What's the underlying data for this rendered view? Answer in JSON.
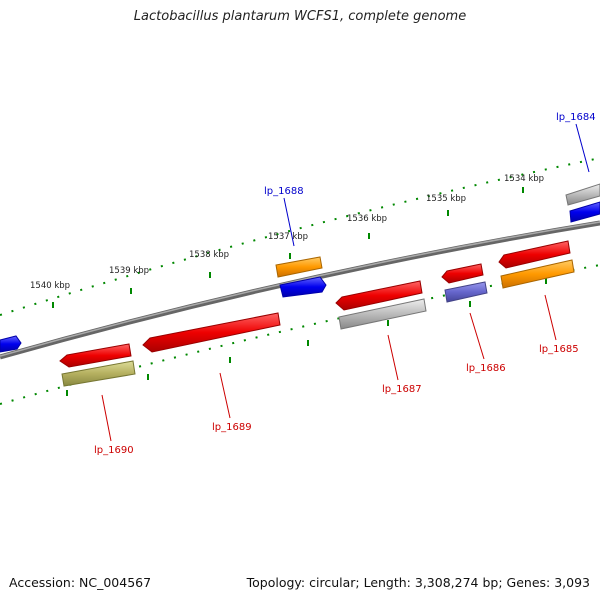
{
  "title": "Lactobacillus plantarum WCFS1, complete genome",
  "footer": {
    "accession": "Accession: NC_004567",
    "summary": "Topology: circular; Length: 3,308,274 bp; Genes: 3,093"
  },
  "tick_labels": [
    "1534 kbp",
    "1535 kbp",
    "1536 kbp",
    "1537 kbp",
    "1538 kbp",
    "1539 kbp",
    "1540 kbp"
  ],
  "gene_labels": [
    {
      "text": "lp_1684",
      "color": "#0000cc"
    },
    {
      "text": "lp_1688",
      "color": "#0000cc"
    },
    {
      "text": "lp_1685",
      "color": "#cc0000"
    },
    {
      "text": "lp_1686",
      "color": "#cc0000"
    },
    {
      "text": "lp_1687",
      "color": "#cc0000"
    },
    {
      "text": "lp_1689",
      "color": "#cc0000"
    },
    {
      "text": "lp_1690",
      "color": "#cc0000"
    }
  ],
  "colors": {
    "backbone": "#777777",
    "forward_cds": "#0000ee",
    "reverse_cds": "#ee0000",
    "category_orange": "#ff9900",
    "category_gray": "#bbbbbb",
    "category_olive": "#b5b060",
    "category_purple": "#6666cc",
    "tick_dots": "#008800"
  }
}
